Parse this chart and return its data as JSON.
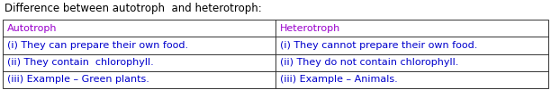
{
  "title": "Difference between autotroph  and heterotroph:",
  "title_color": "#000000",
  "title_fontsize": 8.5,
  "col1_header": "Autotroph",
  "col2_header": "Heterotroph",
  "header_color": "#9900cc",
  "rows": [
    [
      "(i) They can prepare their own food.",
      "(i) They cannot prepare their own food."
    ],
    [
      "(ii) They contain  chlorophyll.",
      "(ii) They do not contain chlorophyll."
    ],
    [
      "(iii) Example – Green plants.",
      "(iii) Example – Animals."
    ]
  ],
  "row_color": "#0000cc",
  "font_family": "DejaVu Sans",
  "font_size": 8.0,
  "bg_color": "#ffffff",
  "border_color": "#333333",
  "fig_width": 6.12,
  "fig_height": 1.01,
  "dpi": 100
}
